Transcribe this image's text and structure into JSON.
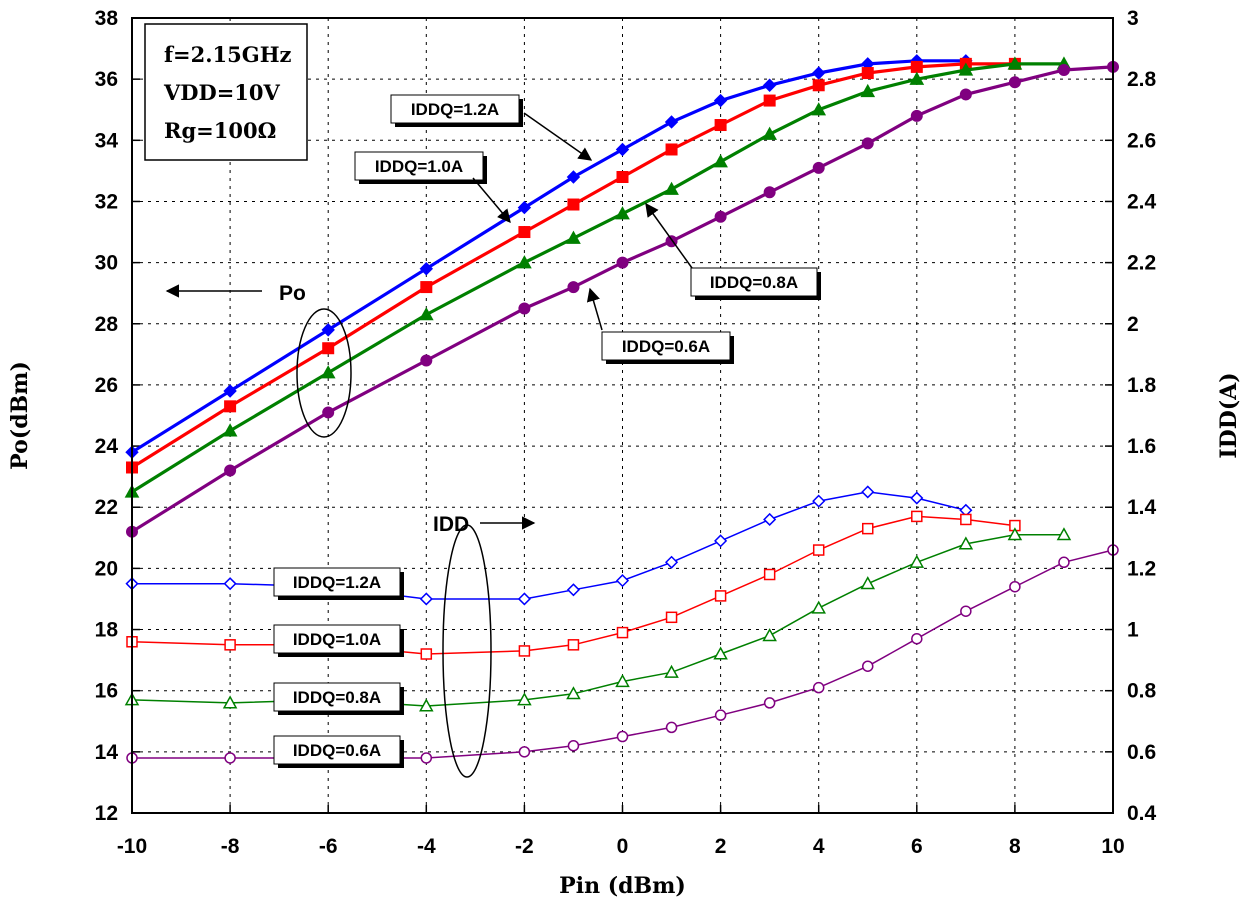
{
  "chart_data": {
    "type": "line",
    "title": "",
    "xlabel": "Pin (dBm)",
    "ylabel_left": "Po(dBm)",
    "ylabel_right": "IDD(A)",
    "xlim": [
      -10,
      10
    ],
    "ylim_left": [
      12,
      38
    ],
    "ylim_right": [
      0.4,
      3.0
    ],
    "grid": true,
    "x_ticks": [
      "-10",
      "-8",
      "-6",
      "-4",
      "-2",
      "0",
      "2",
      "4",
      "6",
      "8",
      "10"
    ],
    "y_left_ticks": [
      "12",
      "14",
      "16",
      "18",
      "20",
      "22",
      "24",
      "26",
      "28",
      "30",
      "32",
      "34",
      "36",
      "38"
    ],
    "y_right_ticks": [
      "0.4",
      "0.6",
      "0.8",
      "1",
      "1.2",
      "1.4",
      "1.6",
      "1.8",
      "2",
      "2.2",
      "2.4",
      "2.6",
      "2.8",
      "3"
    ],
    "conditions": [
      "f=2.15GHz",
      "VDD=10V",
      "Rg=100Ω"
    ],
    "group_labels": {
      "po": "Po",
      "idd": "IDD"
    },
    "series": [
      {
        "name": "IDDQ=1.2A",
        "group": "Po",
        "axis": "left",
        "color": "#0000ff",
        "marker": "diamond",
        "filled": true,
        "x": [
          -10,
          -8,
          -6,
          -4,
          -2,
          -1,
          0,
          1,
          2,
          3,
          4,
          5,
          6,
          7
        ],
        "y": [
          23.8,
          25.8,
          27.8,
          29.8,
          31.8,
          32.8,
          33.7,
          34.6,
          35.3,
          35.8,
          36.2,
          36.5,
          36.6,
          36.6
        ]
      },
      {
        "name": "IDDQ=1.0A",
        "group": "Po",
        "axis": "left",
        "color": "#ff0000",
        "marker": "square",
        "filled": true,
        "x": [
          -10,
          -8,
          -6,
          -4,
          -2,
          -1,
          0,
          1,
          2,
          3,
          4,
          5,
          6,
          7,
          8
        ],
        "y": [
          23.3,
          25.3,
          27.2,
          29.2,
          31.0,
          31.9,
          32.8,
          33.7,
          34.5,
          35.3,
          35.8,
          36.2,
          36.4,
          36.5,
          36.5
        ]
      },
      {
        "name": "IDDQ=0.8A",
        "group": "Po",
        "axis": "left",
        "color": "#008000",
        "marker": "triangle",
        "filled": true,
        "x": [
          -10,
          -8,
          -6,
          -4,
          -2,
          -1,
          0,
          1,
          2,
          3,
          4,
          5,
          6,
          7,
          8,
          9
        ],
        "y": [
          22.5,
          24.5,
          26.4,
          28.3,
          30.0,
          30.8,
          31.6,
          32.4,
          33.3,
          34.2,
          35.0,
          35.6,
          36.0,
          36.3,
          36.5,
          36.5
        ]
      },
      {
        "name": "IDDQ=0.6A",
        "group": "Po",
        "axis": "left",
        "color": "#800080",
        "marker": "circle",
        "filled": true,
        "x": [
          -10,
          -8,
          -6,
          -4,
          -2,
          -1,
          0,
          1,
          2,
          3,
          4,
          5,
          6,
          7,
          8,
          9,
          10
        ],
        "y": [
          21.2,
          23.2,
          25.1,
          26.8,
          28.5,
          29.2,
          30.0,
          30.7,
          31.5,
          32.3,
          33.1,
          33.9,
          34.8,
          35.5,
          35.9,
          36.3,
          36.4
        ]
      },
      {
        "name": "IDDQ=1.2A",
        "group": "IDD",
        "axis": "right",
        "color": "#0000ff",
        "marker": "diamond",
        "filled": false,
        "x": [
          -10,
          -8,
          -6,
          -4,
          -2,
          -1,
          0,
          1,
          2,
          3,
          4,
          5,
          6,
          7
        ],
        "y": [
          1.15,
          1.15,
          1.14,
          1.1,
          1.1,
          1.13,
          1.16,
          1.22,
          1.29,
          1.36,
          1.42,
          1.45,
          1.43,
          1.39
        ]
      },
      {
        "name": "IDDQ=1.0A",
        "group": "IDD",
        "axis": "right",
        "color": "#ff0000",
        "marker": "square",
        "filled": false,
        "x": [
          -10,
          -8,
          -6,
          -4,
          -2,
          -1,
          0,
          1,
          2,
          3,
          4,
          5,
          6,
          7,
          8
        ],
        "y": [
          0.96,
          0.95,
          0.95,
          0.92,
          0.93,
          0.95,
          0.99,
          1.04,
          1.11,
          1.18,
          1.26,
          1.33,
          1.37,
          1.36,
          1.34
        ]
      },
      {
        "name": "IDDQ=0.8A",
        "group": "IDD",
        "axis": "right",
        "color": "#008000",
        "marker": "triangle",
        "filled": false,
        "x": [
          -10,
          -8,
          -6,
          -4,
          -2,
          -1,
          0,
          1,
          2,
          3,
          4,
          5,
          6,
          7,
          8,
          9
        ],
        "y": [
          0.77,
          0.76,
          0.77,
          0.75,
          0.77,
          0.79,
          0.83,
          0.86,
          0.92,
          0.98,
          1.07,
          1.15,
          1.22,
          1.28,
          1.31,
          1.31
        ]
      },
      {
        "name": "IDDQ=0.6A",
        "group": "IDD",
        "axis": "right",
        "color": "#800080",
        "marker": "circle",
        "filled": false,
        "x": [
          -10,
          -8,
          -6,
          -4,
          -2,
          -1,
          0,
          1,
          2,
          3,
          4,
          5,
          6,
          7,
          8,
          9,
          10
        ],
        "y": [
          0.58,
          0.58,
          0.58,
          0.58,
          0.6,
          0.62,
          0.65,
          0.68,
          0.72,
          0.76,
          0.81,
          0.88,
          0.97,
          1.06,
          1.14,
          1.22,
          1.26
        ]
      }
    ]
  }
}
